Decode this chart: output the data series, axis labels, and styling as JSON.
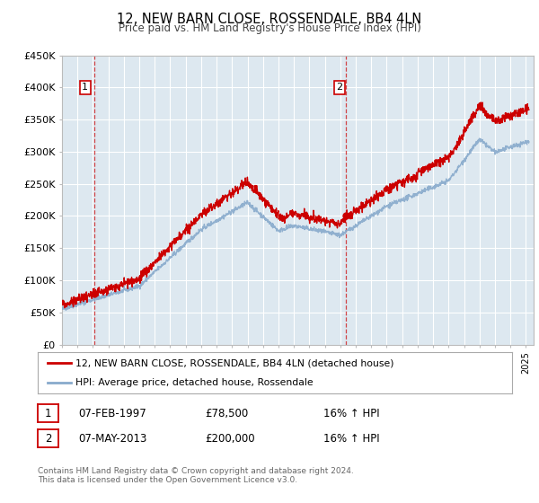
{
  "title": "12, NEW BARN CLOSE, ROSSENDALE, BB4 4LN",
  "subtitle": "Price paid vs. HM Land Registry's House Price Index (HPI)",
  "legend_line1": "12, NEW BARN CLOSE, ROSSENDALE, BB4 4LN (detached house)",
  "legend_line2": "HPI: Average price, detached house, Rossendale",
  "annotation1_label": "1",
  "annotation1_date": "07-FEB-1997",
  "annotation1_price": "£78,500",
  "annotation1_hpi": "16% ↑ HPI",
  "annotation2_label": "2",
  "annotation2_date": "07-MAY-2013",
  "annotation2_price": "£200,000",
  "annotation2_hpi": "16% ↑ HPI",
  "footer": "Contains HM Land Registry data © Crown copyright and database right 2024.\nThis data is licensed under the Open Government Licence v3.0.",
  "sale1_year": 1997.1,
  "sale1_price": 78500,
  "sale2_year": 2013.35,
  "sale2_price": 200000,
  "xmin": 1995,
  "xmax": 2025.5,
  "ymin": 0,
  "ymax": 450000,
  "yticks": [
    0,
    50000,
    100000,
    150000,
    200000,
    250000,
    300000,
    350000,
    400000,
    450000
  ],
  "line_color_red": "#cc0000",
  "line_color_blue": "#88aacc",
  "bg_color": "#dde8f0",
  "grid_color": "#ffffff",
  "vline_color": "#cc0000"
}
